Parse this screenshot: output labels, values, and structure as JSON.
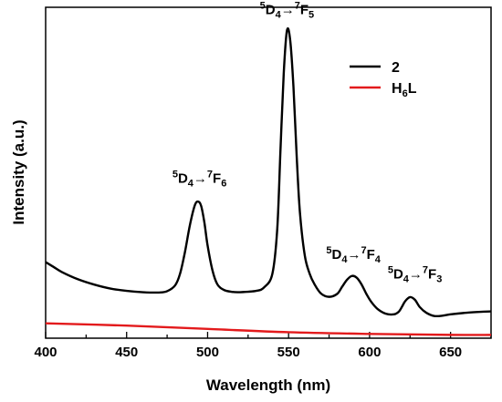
{
  "chart_data": {
    "type": "line",
    "title": "",
    "xlabel": "Wavelength (nm)",
    "ylabel": "Intensity (a.u.)",
    "xlim": [
      400,
      675
    ],
    "ylim": [
      0,
      100
    ],
    "x_ticks": [
      400,
      450,
      500,
      550,
      600,
      650
    ],
    "y_ticks_shown": false,
    "grid": false,
    "legend_position": "top-right",
    "series": [
      {
        "name": "2",
        "color": "#000000",
        "x": [
          400,
          405,
          410,
          420,
          430,
          440,
          450,
          460,
          470,
          475,
          480,
          483,
          486,
          489,
          492,
          494,
          496,
          498,
          500,
          503,
          506,
          510,
          515,
          520,
          530,
          535,
          540,
          543,
          545,
          547,
          549,
          551,
          553,
          555,
          557,
          560,
          563,
          566,
          570,
          575,
          580,
          583,
          586,
          589,
          592,
          595,
          598,
          601,
          605,
          610,
          615,
          618,
          620,
          622,
          625,
          628,
          631,
          635,
          640,
          645,
          650,
          660,
          670,
          675
        ],
        "y": [
          23,
          21.5,
          20,
          17.8,
          16.2,
          15,
          14.3,
          13.9,
          13.8,
          14.2,
          16,
          19.5,
          26,
          34,
          40,
          41.3,
          40,
          35,
          28,
          20.5,
          16.3,
          14.6,
          14,
          13.9,
          14.3,
          15.4,
          19.5,
          33,
          57,
          80,
          93,
          90,
          76,
          55,
          38,
          25,
          19.5,
          16.3,
          13.5,
          12.5,
          13.4,
          15.5,
          17.6,
          18.8,
          18.3,
          16.3,
          13.4,
          11,
          8.8,
          7.4,
          7.2,
          8,
          9.5,
          11.2,
          12.4,
          11.6,
          9.4,
          7.7,
          6.7,
          6.8,
          7.2,
          7.7,
          8,
          8.1
        ]
      },
      {
        "name": "H6L",
        "color": "#e31a1c",
        "x": [
          400,
          450,
          500,
          550,
          600,
          650,
          675
        ],
        "y": [
          4.5,
          3.8,
          2.8,
          1.8,
          1.3,
          1.0,
          1.0
        ]
      }
    ],
    "annotations": [
      {
        "base": "D",
        "pre_sup": "5",
        "sub": "4",
        "arrow": "→",
        "base2": "F",
        "pre_sup2": "7",
        "sub2": "6",
        "x": 495,
        "y": 47
      },
      {
        "base": "D",
        "pre_sup": "5",
        "sub": "4",
        "arrow": "→",
        "base2": "F",
        "pre_sup2": "7",
        "sub2": "5",
        "x": 549,
        "y": 98
      },
      {
        "base": "D",
        "pre_sup": "5",
        "sub": "4",
        "arrow": "→",
        "base2": "F",
        "pre_sup2": "7",
        "sub2": "4",
        "x": 590,
        "y": 24
      },
      {
        "base": "D",
        "pre_sup": "5",
        "sub": "4",
        "arrow": "→",
        "base2": "F",
        "pre_sup2": "7",
        "sub2": "3",
        "x": 628,
        "y": 18
      }
    ],
    "legend": [
      {
        "label_main": "2",
        "label_sub": ""
      },
      {
        "label_main": "H",
        "label_sub": "6",
        "label_tail": "L"
      }
    ]
  }
}
